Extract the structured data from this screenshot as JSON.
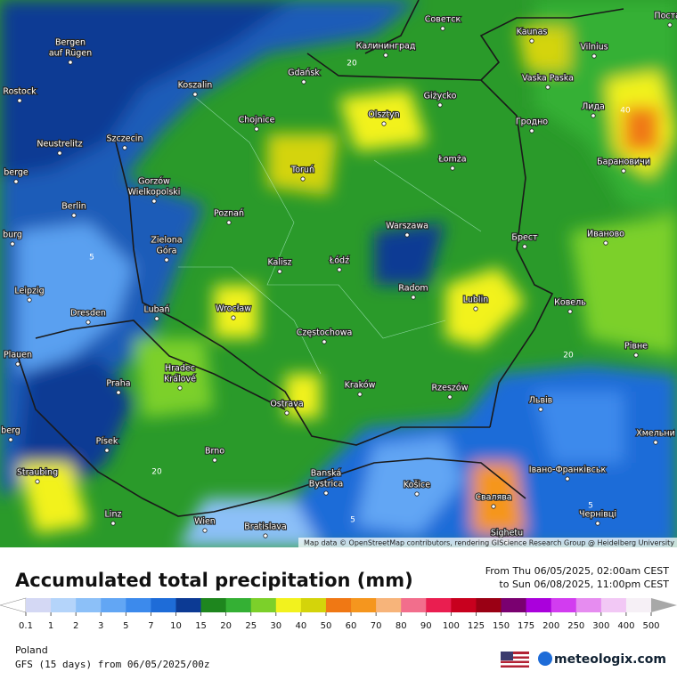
{
  "map": {
    "labels": [
      [
        "Советск"
      ],
      [
        "Kaunas"
      ],
      [
        "Vilnius"
      ],
      [
        "Постав"
      ],
      [
        "Bergen",
        "auf Rügen"
      ],
      [
        "Калининград"
      ],
      [
        "Gdańsk"
      ],
      [
        "Rostock"
      ],
      [
        "Koszalin"
      ],
      [
        "Vaska Paska"
      ],
      [
        "Giżycko"
      ],
      [
        "Лида"
      ],
      [
        "Chojnice"
      ],
      [
        "Olsztyn"
      ],
      [
        "Гродно"
      ],
      [
        "Neustrelitz"
      ],
      [
        "Szczecin"
      ],
      [
        "Барановичи"
      ],
      [
        "berge"
      ],
      [
        "Toruń"
      ],
      [
        "Łomża"
      ],
      [
        "Gorzów",
        "Wielkopolski"
      ],
      [
        "Berlin"
      ],
      [
        "Poznań"
      ],
      [
        "Warszawa"
      ],
      [
        "Брест"
      ],
      [
        "Иваново"
      ],
      [
        "burg"
      ],
      [
        "Zielona",
        "Góra"
      ],
      [
        "Kalisz"
      ],
      [
        "Łódź"
      ],
      [
        "Radom"
      ],
      [
        "Leipzig"
      ],
      [
        "Dresden"
      ],
      [
        "Lubań"
      ],
      [
        "Wrocław"
      ],
      [
        "Lublin"
      ],
      [
        "Ковель"
      ],
      [
        "Częstochowa"
      ],
      [
        "Plauen"
      ],
      [
        "Рівне"
      ],
      [
        "Hradec",
        "Králové"
      ],
      [
        "Praha"
      ],
      [
        "Kraków"
      ],
      [
        "Rzeszów"
      ],
      [
        "Львів"
      ],
      [
        "Ostrava"
      ],
      [
        "berg"
      ],
      [
        "Písek"
      ],
      [
        "Brno"
      ],
      [
        "Хмельни"
      ],
      [
        "Straubing"
      ],
      [
        "Banská",
        "Bystrica"
      ],
      [
        "Košice"
      ],
      [
        "Івано-Франківськ"
      ],
      [
        "Свалява"
      ],
      [
        "Linz"
      ],
      [
        "Wien"
      ],
      [
        "Bratislava"
      ],
      [
        "Чернівці"
      ],
      [
        "Sighetu"
      ]
    ],
    "contour_labels": [
      20,
      40,
      5,
      20,
      5,
      20,
      5
    ],
    "attribution": "Map data © OpenStreetMap contributors, rendering GIScience Research Group @ Heidelberg University"
  },
  "header": {
    "title": "Accumulated total precipitation (mm)",
    "from": "From Thu 06/05/2025, 02:00am CEST",
    "to": "to Sun 06/08/2025, 11:00pm CEST"
  },
  "legend": {
    "ticks": [
      0.1,
      1,
      2,
      3,
      5,
      7,
      10,
      15,
      20,
      25,
      30,
      40,
      50,
      60,
      70,
      80,
      90,
      100,
      125,
      150,
      175,
      200,
      250,
      300,
      400,
      500
    ],
    "colors": [
      "#ffffff",
      "#d4d8f4",
      "#b4d4fa",
      "#8cc0f8",
      "#62a6f4",
      "#3c8aec",
      "#1e6cd8",
      "#0c3a94",
      "#1e861e",
      "#34b034",
      "#7cd02a",
      "#f2f21e",
      "#d4d40a",
      "#f07814",
      "#f5961e",
      "#f7b47a",
      "#f26e8c",
      "#ea1e50",
      "#c8001e",
      "#9a0014",
      "#7a0070",
      "#aa00dc",
      "#d23cf0",
      "#e68cf0",
      "#f2c8f5",
      "#f6f0f6",
      "#a8a8a8"
    ]
  },
  "footer": {
    "region": "Poland",
    "model": "GFS (15 days) from 06/05/2025/00z",
    "brand": "meteologix.com"
  }
}
